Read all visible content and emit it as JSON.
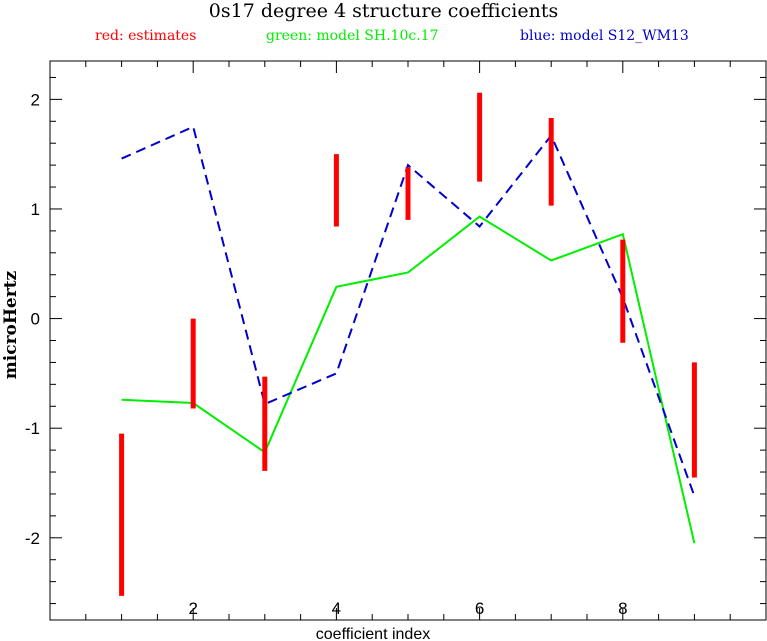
{
  "chart_data": {
    "type": "line",
    "title": "0s17 degree 4 structure coefficients",
    "legend": [
      {
        "text": "red: estimates",
        "color": "#ff0000"
      },
      {
        "text": "green: model SH.10c.17",
        "color": "#00ee00"
      },
      {
        "text": "blue: model S12_WM13",
        "color": "#0000cc"
      }
    ],
    "xlabel": "coefficient index",
    "ylabel": "microHertz",
    "xlim": [
      0,
      10
    ],
    "ylim": [
      -2.75,
      2.35
    ],
    "x_ticks": [
      2,
      4,
      6,
      8
    ],
    "y_ticks": [
      -2,
      -1,
      0,
      1,
      2
    ],
    "estimates": [
      {
        "x": 1,
        "low": -2.53,
        "high": -1.05
      },
      {
        "x": 2,
        "low": -0.82,
        "high": 0.0
      },
      {
        "x": 3,
        "low": -1.39,
        "high": -0.53
      },
      {
        "x": 4,
        "low": 0.84,
        "high": 1.5
      },
      {
        "x": 5,
        "low": 0.9,
        "high": 1.38
      },
      {
        "x": 6,
        "low": 1.25,
        "high": 2.06
      },
      {
        "x": 7,
        "low": 1.03,
        "high": 1.83
      },
      {
        "x": 8,
        "low": -0.22,
        "high": 0.72
      },
      {
        "x": 9,
        "low": -1.45,
        "high": -0.4
      }
    ],
    "series": [
      {
        "name": "model SH.10c.17",
        "color": "#00ee00",
        "style": "solid",
        "x": [
          1,
          2,
          3,
          4,
          5,
          6,
          7,
          8,
          9
        ],
        "y": [
          -0.74,
          -0.77,
          -1.22,
          0.29,
          0.42,
          0.93,
          0.53,
          0.77,
          -2.05
        ]
      },
      {
        "name": "model S12_WM13",
        "color": "#0000cc",
        "style": "dashed",
        "x": [
          1,
          2,
          3,
          4,
          5,
          6,
          7,
          8,
          9
        ],
        "y": [
          1.46,
          1.75,
          -0.78,
          -0.5,
          1.4,
          0.84,
          1.67,
          0.19,
          -1.62
        ]
      }
    ]
  }
}
